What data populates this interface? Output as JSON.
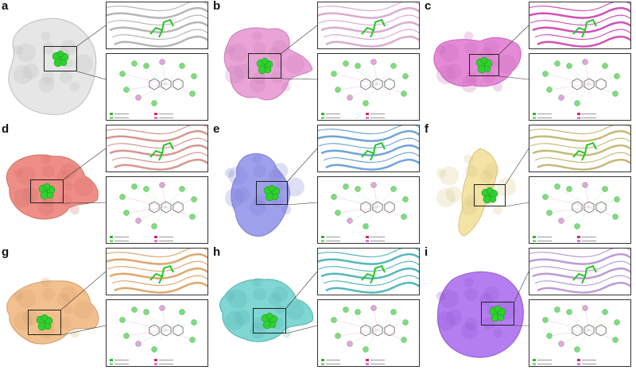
{
  "panels": [
    {
      "label": "a",
      "color": "#e6e6e6",
      "edge": "#bdbdbd",
      "ribbon": "#9e9e9e",
      "ligand": "#2fd12f"
    },
    {
      "label": "b",
      "color": "#e9a3d6",
      "edge": "#c97fb7",
      "ribbon": "#cf8fbf",
      "ligand": "#2fd12f"
    },
    {
      "label": "c",
      "color": "#e48ad6",
      "edge": "#c86ab7",
      "ribbon": "#c2179f",
      "ligand": "#2fd12f"
    },
    {
      "label": "d",
      "color": "#ee8e86",
      "edge": "#d06f67",
      "ribbon": "#c9716a",
      "ligand": "#2fd12f"
    },
    {
      "label": "e",
      "color": "#9fa0ec",
      "edge": "#7b7dd2",
      "ribbon": "#3f86cf",
      "ligand": "#2fd12f"
    },
    {
      "label": "f",
      "color": "#f3e3a5",
      "edge": "#d6c47f",
      "ribbon": "#b3a24a",
      "ligand": "#2fd12f"
    },
    {
      "label": "g",
      "color": "#f2c08e",
      "edge": "#d49d6b",
      "ribbon": "#d38a3b",
      "ligand": "#2fd12f"
    },
    {
      "label": "h",
      "color": "#7fd6d2",
      "edge": "#56b4b0",
      "ribbon": "#1a9fa6",
      "ligand": "#2fd12f"
    },
    {
      "label": "i",
      "color": "#b57ef0",
      "edge": "#9159cf",
      "ribbon": "#a679c9",
      "ligand": "#2fd12f"
    }
  ]
}
